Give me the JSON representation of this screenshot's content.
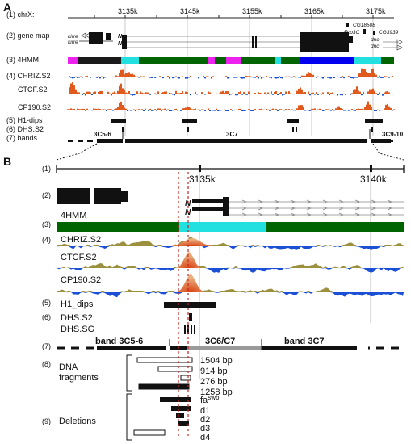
{
  "panelA": {
    "letter": "A",
    "track_labels": [
      "(1) chrX:",
      "(2) gene map",
      "(3) 4HMM",
      "(4) CHRIZ.S2",
      "CTCF.S2",
      "CP190.S2",
      "(5) H1-dips",
      "(6) DHS.S2",
      "(7) bands"
    ],
    "coords": [
      "3135k",
      "3145k",
      "3155k",
      "3165k",
      "3175k"
    ],
    "genes": [
      "kirre",
      "kirre",
      "CG18508",
      "Fcp3C",
      "CG3939",
      "dnc",
      "dnc"
    ],
    "bands": [
      "3C5-6",
      "3C7",
      "3C9-10"
    ],
    "state_colors": {
      "black": "#1a1a1a",
      "green": "#006400",
      "cyan": "#22e0e0",
      "magenta": "#ee22ee",
      "blue": "#0000ee"
    },
    "signal_colors": {
      "orange": "#e05a1e",
      "blue": "#1a4fd6"
    }
  },
  "panelB": {
    "letter": "B",
    "row_labels": [
      "(1)",
      "(2)",
      "(3)",
      "(4)",
      "(5)",
      "(6)",
      "(7)",
      "(8)",
      "(9)"
    ],
    "coords": [
      "3135k",
      "3140k"
    ],
    "track_names": {
      "hmm": "4HMM",
      "chriz": "CHRIZ.S2",
      "ctcf": "CTCF.S2",
      "cp190": "CP190.S2",
      "h1": "H1_dips",
      "dhs_s2": "DHS.S2",
      "dhs_sg": "DHS.SG"
    },
    "bands": [
      "band 3C5-6",
      "3C6/C7",
      "band 3C7"
    ],
    "fragments_label": [
      "DNA",
      "fragments"
    ],
    "fragments": [
      "1504 bp",
      "914 bp",
      "276 bp",
      "1258 bp"
    ],
    "deletions_label": "Deletions",
    "deletion_base": "fa",
    "deletion_sup": "swb",
    "deletions": [
      "d1",
      "d2",
      "d3",
      "d4"
    ],
    "colors": {
      "olive": "#8a7d1c",
      "blue": "#1a4fd6",
      "orange": "#e05a1e",
      "dashed": "#cc2222"
    }
  }
}
